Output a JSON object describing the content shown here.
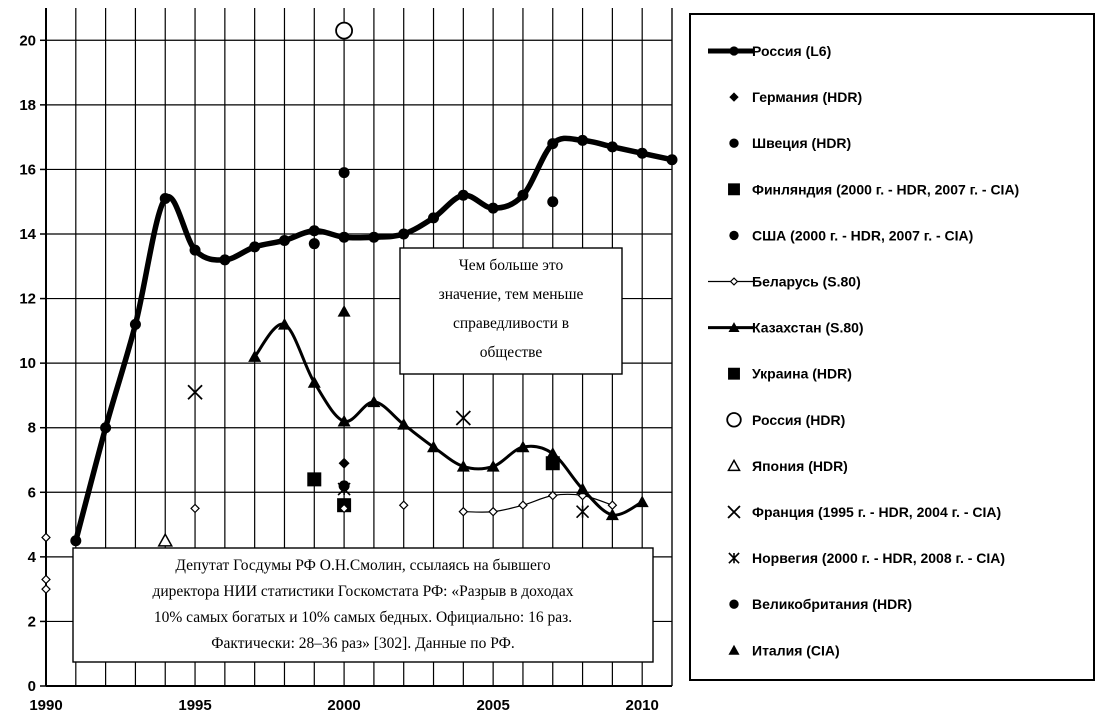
{
  "chart_data": {
    "type": "line",
    "xlim": [
      1990,
      2011
    ],
    "ylim": [
      0,
      21
    ],
    "grid": true,
    "legend_placement": "right",
    "x_ticks": [
      "1990",
      "1995",
      "2000",
      "2005",
      "2010"
    ],
    "y_ticks": [
      "0",
      "2",
      "4",
      "6",
      "8",
      "10",
      "12",
      "14",
      "16",
      "18",
      "20"
    ],
    "series": [
      {
        "name": "Россия (L6)",
        "marker": "dot-line",
        "points": [
          [
            1991,
            4.5
          ],
          [
            1992,
            8.0
          ],
          [
            1993,
            11.2
          ],
          [
            1994,
            15.1
          ],
          [
            1995,
            13.5
          ],
          [
            1996,
            13.2
          ],
          [
            1997,
            13.6
          ],
          [
            1998,
            13.8
          ],
          [
            1999,
            14.1
          ],
          [
            2000,
            13.9
          ],
          [
            2001,
            13.9
          ],
          [
            2002,
            14.0
          ],
          [
            2003,
            14.5
          ],
          [
            2004,
            15.2
          ],
          [
            2005,
            14.8
          ],
          [
            2006,
            15.2
          ],
          [
            2007,
            16.8
          ],
          [
            2008,
            16.9
          ],
          [
            2009,
            16.7
          ],
          [
            2010,
            16.5
          ],
          [
            2011,
            16.3
          ]
        ]
      },
      {
        "name": "Германия (HDR)",
        "marker": "diamond-filled",
        "points": [
          [
            2000,
            6.9
          ]
        ]
      },
      {
        "name": "Швеция (HDR)",
        "marker": "circle-filled",
        "points": [
          [
            2000,
            6.2
          ]
        ]
      },
      {
        "name": "Финляндия (2000 г. - HDR, 2007 г. - CIA)",
        "marker": "square-filled",
        "points": [
          [
            2000,
            5.6
          ],
          [
            2007,
            6.9
          ]
        ]
      },
      {
        "name": "США (2000 г. - HDR, 2007 г. - CIA)",
        "marker": "circle-filled",
        "points": [
          [
            2000,
            15.9
          ],
          [
            2007,
            15.0
          ]
        ]
      },
      {
        "name": "Беларусь (S.80)",
        "marker": "diamond-open",
        "points": [
          [
            1990,
            4.6
          ],
          [
            1995,
            5.5
          ],
          [
            2000,
            5.5
          ],
          [
            2002,
            5.6
          ],
          [
            2004,
            5.4
          ],
          [
            2005,
            5.4
          ],
          [
            2006,
            5.6
          ],
          [
            2007,
            5.9
          ],
          [
            2008,
            5.9
          ],
          [
            2009,
            5.6
          ]
        ]
      },
      {
        "name": "Казахстан (S.80)",
        "marker": "triangle-line",
        "points": [
          [
            1997,
            10.2
          ],
          [
            1998,
            11.2
          ],
          [
            1999,
            9.4
          ],
          [
            2000,
            8.2
          ],
          [
            2001,
            8.8
          ],
          [
            2002,
            8.1
          ],
          [
            2003,
            7.4
          ],
          [
            2004,
            6.8
          ],
          [
            2005,
            6.8
          ],
          [
            2006,
            7.4
          ],
          [
            2007,
            7.2
          ],
          [
            2008,
            6.1
          ],
          [
            2009,
            5.3
          ],
          [
            2010,
            5.7
          ]
        ]
      },
      {
        "name": "Украина (HDR)",
        "marker": "square-filled",
        "points": [
          [
            1999,
            6.4
          ]
        ]
      },
      {
        "name": "Россия (HDR)",
        "marker": "circle-open",
        "points": [
          [
            2000,
            20.3
          ]
        ]
      },
      {
        "name": "Япония (HDR)",
        "marker": "triangle-open",
        "points": [
          [
            1994,
            4.5
          ]
        ]
      },
      {
        "name": "Франция (1995 г. - HDR, 2004 г. - CIA)",
        "marker": "x",
        "points": [
          [
            1995,
            9.1
          ],
          [
            2004,
            8.3
          ]
        ]
      },
      {
        "name": "Норвегия (2000 г. - HDR, 2008 г. - CIA)",
        "marker": "asterisk",
        "points": [
          [
            2000,
            6.1
          ],
          [
            2008,
            5.4
          ]
        ]
      },
      {
        "name": "Великобритания (HDR)",
        "marker": "circle-filled",
        "points": [
          [
            1999,
            13.7
          ]
        ]
      },
      {
        "name": "Италия (CIA)",
        "marker": "triangle-filled",
        "points": [
          [
            2000,
            11.6
          ]
        ]
      }
    ],
    "annotations": [
      {
        "lines": [
          "Чем больше это",
          "значение, тем меньше",
          "справедливости в",
          "обществе"
        ]
      },
      {
        "lines": [
          "Депутат Госдумы РФ О.Н.Смолин, ссылаясь на бывшего",
          "директора НИИ статистики Госкомстата РФ: «Разрыв в доходах",
          "10% самых богатых и 10% самых бедных. Официально: 16 раз.",
          "Фактически: 28–36 раз» [302]. Данные по РФ."
        ]
      }
    ],
    "extra_markers": [
      {
        "marker": "diamond-open",
        "points": [
          [
            1990,
            3.3
          ],
          [
            1990,
            3.0
          ]
        ]
      }
    ]
  }
}
